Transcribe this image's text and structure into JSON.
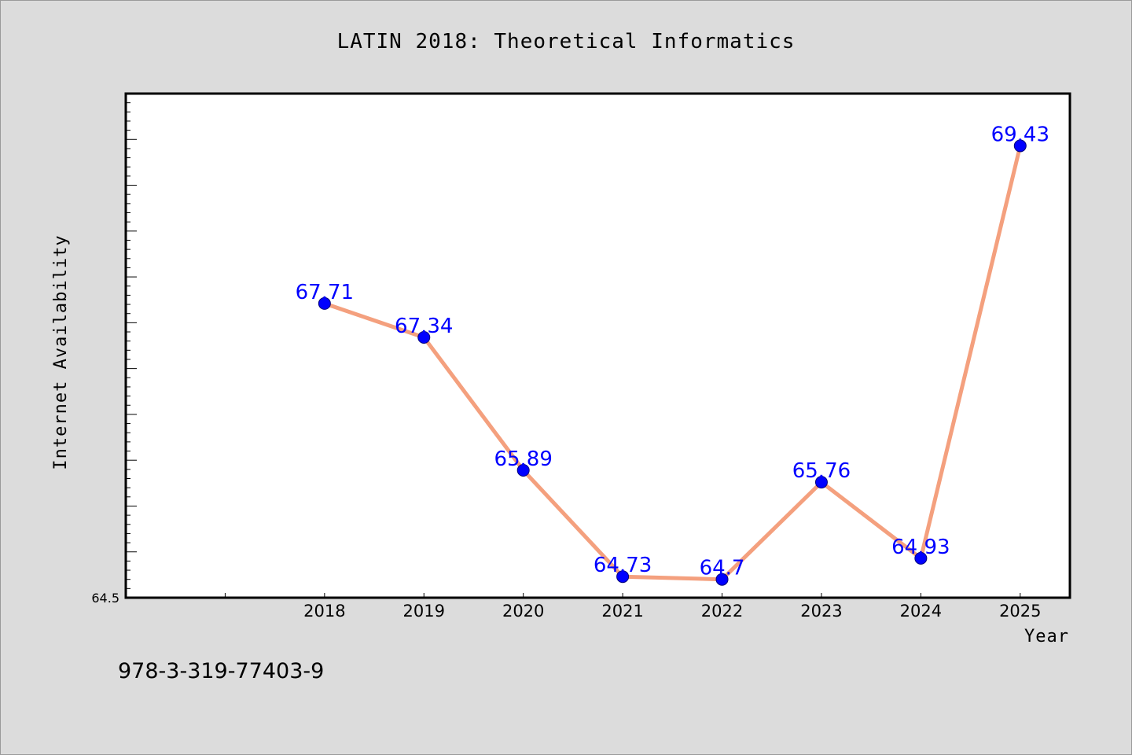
{
  "chart_data": {
    "type": "line",
    "title": "LATIN 2018: Theoretical Informatics",
    "xlabel": "Year",
    "ylabel": "Internet Availability",
    "categories": [
      "2018",
      "2019",
      "2020",
      "2021",
      "2022",
      "2023",
      "2024",
      "2025"
    ],
    "series": [
      {
        "values": [
          67.71,
          67.34,
          65.89,
          64.73,
          64.7,
          65.76,
          64.93,
          69.43
        ],
        "labels": [
          "67.71",
          "67.34",
          "65.89",
          "64.73",
          "64.7",
          "65.76",
          "64.93",
          "69.43"
        ],
        "line_color": "#f4a07e",
        "marker_color": "#0000ff"
      }
    ],
    "x_positions": [
      2018,
      2019,
      2020,
      2021,
      2022,
      2023,
      2024,
      2025
    ],
    "xlim": [
      2016,
      2025.5
    ],
    "ylim": [
      64.5,
      70.0
    ],
    "yticks_labeled": [
      "64.5"
    ],
    "grid": false,
    "label_color": "#0000ff"
  },
  "footer_text": "978-3-319-77403-9"
}
